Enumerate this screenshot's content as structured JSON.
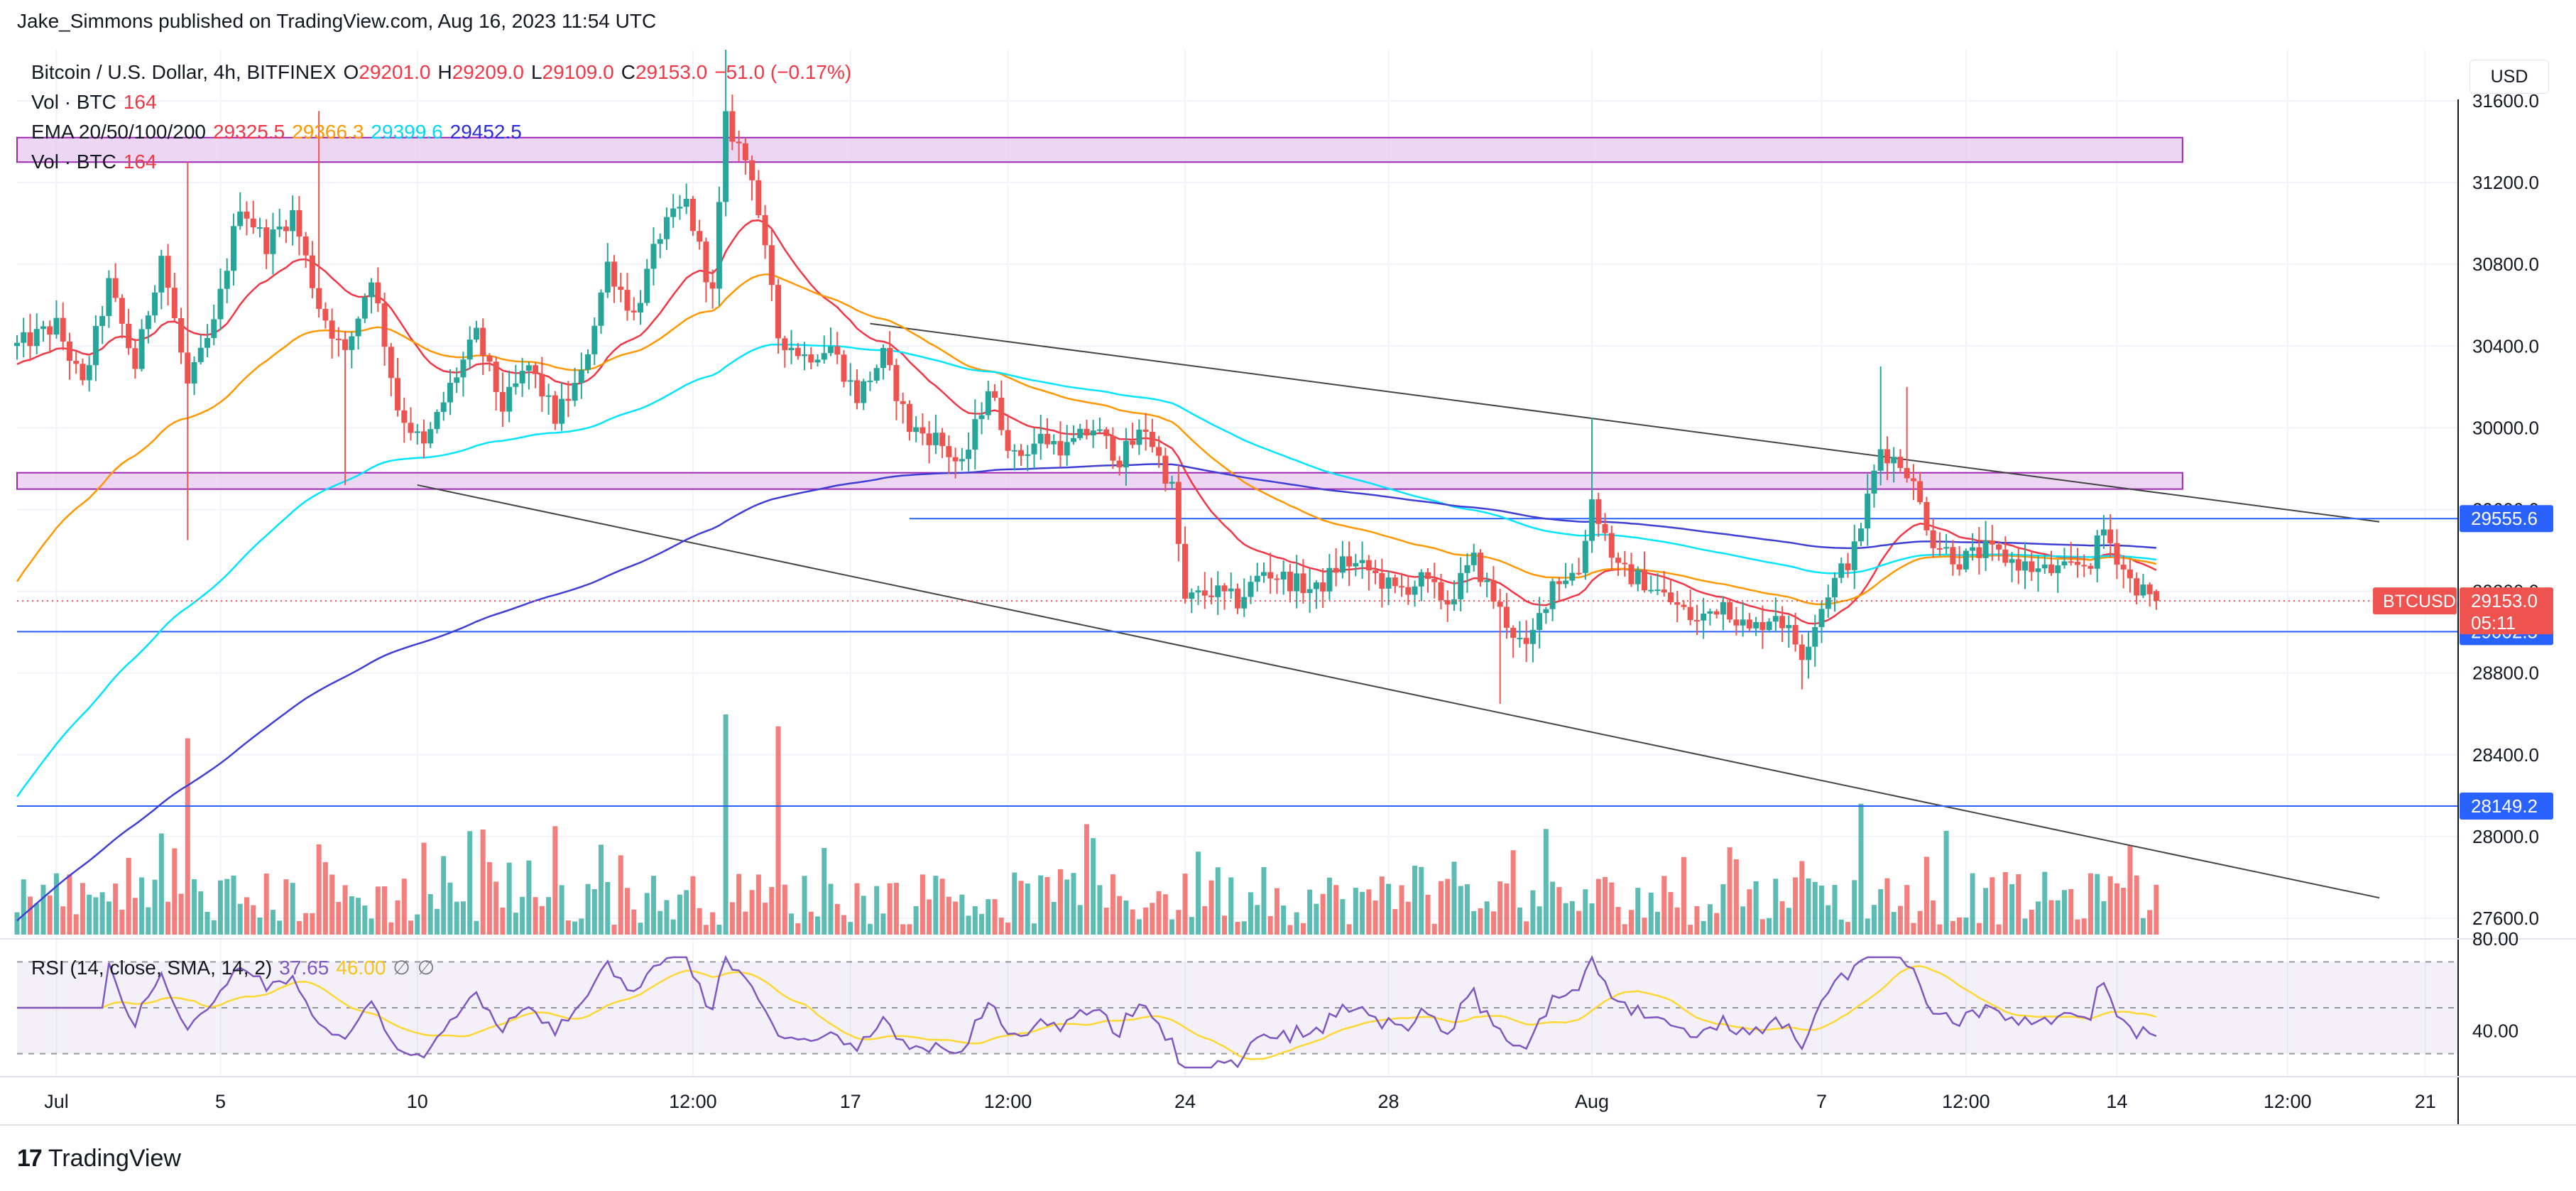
{
  "header": {
    "published": "Jake_Simmons published on TradingView.com, Aug 16, 2023 11:54 UTC"
  },
  "legend": {
    "symbol": "Bitcoin / U.S. Dollar, 4h, BITFINEX",
    "o_label": "O",
    "o_value": "29201.0",
    "h_label": "H",
    "h_value": "29209.0",
    "l_label": "L",
    "l_value": "29109.0",
    "c_label": "C",
    "c_value": "29153.0",
    "change": "−51.0 (−0.17%)",
    "vol_label": "Vol · BTC",
    "vol_value": "164",
    "ema_label": "EMA 20/50/100/200",
    "ema20": "29325.5",
    "ema50": "29366.3",
    "ema100": "29399.6",
    "ema200": "29452.5",
    "vol2_label": "Vol · BTC",
    "vol2_value": "164"
  },
  "currency_button": "USD",
  "rsi_legend": {
    "label": "RSI (14, close, SMA, 14, 2)",
    "rsi_value": "37.65",
    "sma_value": "46.00",
    "icon1": "∅",
    "icon2": "∅"
  },
  "price_tags": {
    "symbol_tag": "BTCUSD",
    "last_price": "29153.0",
    "countdown": "05:11",
    "level_upper": "29555.6",
    "level_mid": "29002.5",
    "level_low": "28149.2"
  },
  "branding": "TradingView",
  "colors": {
    "up": "#26a69a",
    "down": "#ef5350",
    "ema20": "#f23645",
    "ema50": "#ff9800",
    "ema100": "#00e5ff",
    "ema200": "#3f3fd6",
    "rsi": "#7e57c2",
    "rsi_sma": "#fdd835",
    "zone_fill": "#e7c8f0",
    "zone_border": "#9c27b0",
    "hline": "#2962ff",
    "trend": "#444444"
  },
  "chart_data": {
    "type": "candlestick",
    "title": "Bitcoin / U.S. Dollar, 4h, BITFINEX",
    "y_axis": {
      "ticks": [
        "31600.0",
        "31200.0",
        "30800.0",
        "30400.0",
        "30000.0",
        "29600.0",
        "29200.0",
        "28800.0",
        "28400.0",
        "28000.0",
        "27600.0"
      ],
      "range": [
        27520,
        31850
      ]
    },
    "x_axis": {
      "ticks": [
        "Jul",
        "5",
        "10",
        "12:00",
        "17",
        "12:00",
        "24",
        "28",
        "Aug",
        "7",
        "12:00",
        "14",
        "12:00",
        "21"
      ],
      "tick_times": [
        6,
        31,
        61,
        103,
        127,
        151,
        178,
        209,
        240,
        275,
        297,
        320,
        346,
        367
      ]
    },
    "time_unit": "4h bars from start of chart",
    "ohlc_anchor_points": [
      {
        "t": 0,
        "p": 30400
      },
      {
        "t": 6,
        "p": 30500
      },
      {
        "t": 10,
        "p": 30200
      },
      {
        "t": 14,
        "p": 30700
      },
      {
        "t": 18,
        "p": 30300
      },
      {
        "t": 22,
        "p": 30850
      },
      {
        "t": 26,
        "p": 30200
      },
      {
        "t": 30,
        "p": 30500
      },
      {
        "t": 34,
        "p": 31100
      },
      {
        "t": 38,
        "p": 30900
      },
      {
        "t": 42,
        "p": 31050
      },
      {
        "t": 46,
        "p": 30600
      },
      {
        "t": 50,
        "p": 30350
      },
      {
        "t": 54,
        "p": 30750
      },
      {
        "t": 58,
        "p": 30100
      },
      {
        "t": 62,
        "p": 29900
      },
      {
        "t": 66,
        "p": 30200
      },
      {
        "t": 70,
        "p": 30450
      },
      {
        "t": 74,
        "p": 30100
      },
      {
        "t": 78,
        "p": 30300
      },
      {
        "t": 82,
        "p": 30050
      },
      {
        "t": 86,
        "p": 30250
      },
      {
        "t": 90,
        "p": 30800
      },
      {
        "t": 94,
        "p": 30550
      },
      {
        "t": 98,
        "p": 30950
      },
      {
        "t": 102,
        "p": 31100
      },
      {
        "t": 106,
        "p": 30650
      },
      {
        "t": 108,
        "p": 31500
      },
      {
        "t": 112,
        "p": 31250
      },
      {
        "t": 116,
        "p": 30450
      },
      {
        "t": 120,
        "p": 30350
      },
      {
        "t": 124,
        "p": 30400
      },
      {
        "t": 128,
        "p": 30150
      },
      {
        "t": 132,
        "p": 30350
      },
      {
        "t": 136,
        "p": 30000
      },
      {
        "t": 140,
        "p": 29950
      },
      {
        "t": 144,
        "p": 29800
      },
      {
        "t": 148,
        "p": 30200
      },
      {
        "t": 152,
        "p": 29850
      },
      {
        "t": 156,
        "p": 29950
      },
      {
        "t": 160,
        "p": 29900
      },
      {
        "t": 164,
        "p": 30000
      },
      {
        "t": 168,
        "p": 29850
      },
      {
        "t": 172,
        "p": 30000
      },
      {
        "t": 176,
        "p": 29700
      },
      {
        "t": 178,
        "p": 29150
      },
      {
        "t": 182,
        "p": 29200
      },
      {
        "t": 186,
        "p": 29150
      },
      {
        "t": 190,
        "p": 29300
      },
      {
        "t": 194,
        "p": 29250
      },
      {
        "t": 198,
        "p": 29200
      },
      {
        "t": 202,
        "p": 29350
      },
      {
        "t": 206,
        "p": 29300
      },
      {
        "t": 210,
        "p": 29200
      },
      {
        "t": 214,
        "p": 29250
      },
      {
        "t": 218,
        "p": 29150
      },
      {
        "t": 222,
        "p": 29350
      },
      {
        "t": 226,
        "p": 29100
      },
      {
        "t": 230,
        "p": 28900
      },
      {
        "t": 234,
        "p": 29250
      },
      {
        "t": 238,
        "p": 29300
      },
      {
        "t": 240,
        "p": 29650
      },
      {
        "t": 244,
        "p": 29300
      },
      {
        "t": 248,
        "p": 29250
      },
      {
        "t": 252,
        "p": 29150
      },
      {
        "t": 256,
        "p": 29050
      },
      {
        "t": 260,
        "p": 29150
      },
      {
        "t": 264,
        "p": 29000
      },
      {
        "t": 268,
        "p": 29100
      },
      {
        "t": 272,
        "p": 28900
      },
      {
        "t": 276,
        "p": 29200
      },
      {
        "t": 280,
        "p": 29400
      },
      {
        "t": 284,
        "p": 29900
      },
      {
        "t": 288,
        "p": 29800
      },
      {
        "t": 292,
        "p": 29450
      },
      {
        "t": 296,
        "p": 29350
      },
      {
        "t": 300,
        "p": 29400
      },
      {
        "t": 304,
        "p": 29350
      },
      {
        "t": 308,
        "p": 29300
      },
      {
        "t": 312,
        "p": 29300
      },
      {
        "t": 316,
        "p": 29350
      },
      {
        "t": 318,
        "p": 29500
      },
      {
        "t": 322,
        "p": 29250
      },
      {
        "t": 326,
        "p": 29150
      }
    ],
    "volume_spikes": [
      {
        "t": 26,
        "v": 165
      },
      {
        "t": 108,
        "v": 185
      },
      {
        "t": 116,
        "v": 175
      },
      {
        "t": 281,
        "v": 110
      }
    ],
    "horizontal_levels": [
      29555.6,
      29002.5,
      28149.2
    ],
    "resistance_zones": [
      [
        31300,
        31420
      ],
      [
        29700,
        29780
      ]
    ],
    "trendlines": [
      {
        "from": {
          "t": 130,
          "p": 30510
        },
        "to": {
          "t": 360,
          "p": 29540
        }
      },
      {
        "from": {
          "t": 61,
          "p": 29720
        },
        "to": {
          "t": 360,
          "p": 27700
        }
      }
    ],
    "rsi": {
      "range": [
        20,
        80
      ],
      "ticks": [
        "80.00",
        "40.00"
      ],
      "bands": [
        70,
        50,
        30
      ],
      "last_rsi": 37.65,
      "last_sma": 46.0
    }
  }
}
